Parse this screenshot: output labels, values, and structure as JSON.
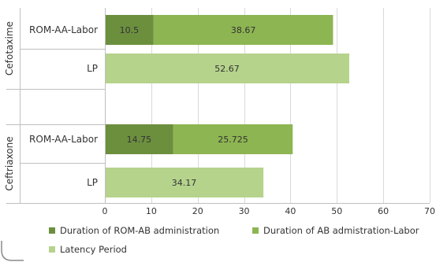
{
  "chart_data": {
    "type": "bar",
    "orientation": "horizontal",
    "stacked": true,
    "groups": [
      {
        "label": "Cefotaxime",
        "categories": [
          {
            "label": "ROM-AA-Labor",
            "values": [
              10.5,
              38.67
            ],
            "value_labels": [
              "10.5",
              "38.67"
            ]
          },
          {
            "label": "LP",
            "values": [
              52.67
            ],
            "value_labels": [
              "52.67"
            ]
          }
        ]
      },
      {
        "label": "Ceftriaxone",
        "categories": [
          {
            "label": "ROM-AA-Labor",
            "values": [
              14.75,
              25.725
            ],
            "value_labels": [
              "14.75",
              "25.725"
            ]
          },
          {
            "label": "LP",
            "values": [
              34.17
            ],
            "value_labels": [
              "34.17"
            ]
          }
        ]
      }
    ],
    "series": [
      {
        "name": "Duration of ROM-AB administration",
        "color": "#6c8f3e"
      },
      {
        "name": "Duration of AB admistration-Labor",
        "color": "#8db552"
      },
      {
        "name": "Latency Period",
        "color": "#b6d38c"
      }
    ],
    "xlim": [
      0,
      70
    ],
    "xticks": [
      0,
      10,
      20,
      30,
      40,
      50,
      60,
      70
    ],
    "xtick_labels": [
      "0",
      "10",
      "20",
      "30",
      "40",
      "50",
      "60",
      "70"
    ],
    "grid": true,
    "legend_position": "bottom"
  }
}
